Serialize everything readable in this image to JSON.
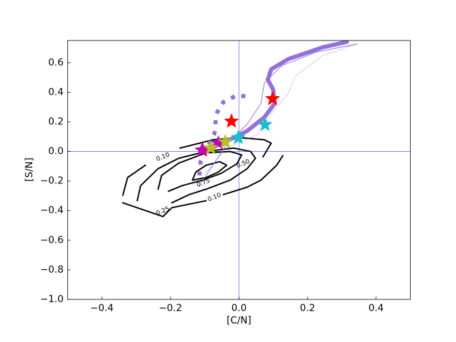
{
  "chart_data": {
    "type": "line",
    "xlabel": "[C/N]",
    "ylabel": "[S/N]",
    "xlim": [
      -0.5,
      0.5
    ],
    "ylim": [
      -1.0,
      0.75
    ],
    "xticks": [
      {
        "value": -0.4,
        "label": "−0.4"
      },
      {
        "value": -0.2,
        "label": "−0.2"
      },
      {
        "value": 0.0,
        "label": "0.0"
      },
      0.2,
      0.4
    ],
    "yticks": [
      {
        "value": -1.0,
        "label": "−1.0"
      },
      {
        "value": -0.8,
        "label": "−0.8"
      },
      {
        "value": -0.6,
        "label": "−0.6"
      },
      {
        "value": -0.4,
        "label": "−0.4"
      },
      {
        "value": -0.2,
        "label": "−0.2"
      },
      {
        "value": 0.0,
        "label": "0.0"
      },
      0.2,
      0.4,
      0.6
    ],
    "reference_lines": {
      "x": 0,
      "y": 0,
      "color": "#6b6bf0"
    },
    "series": [
      {
        "color": "#000000",
        "linestyle": "solid",
        "linewidth": 2,
        "x": [
          -0.339,
          -0.325,
          -0.273,
          null,
          -0.172,
          -0.076,
          0.004,
          0.074,
          0.094,
          0.07,
          null,
          0.128,
          0.11,
          0.064,
          0.024,
          -0.046,
          null,
          -0.096,
          -0.196,
          -0.222,
          -0.339
        ],
        "y": [
          -0.296,
          -0.176,
          -0.093,
          null,
          0.023,
          0.079,
          0.093,
          0.079,
          0.056,
          -0.037,
          null,
          -0.028,
          -0.093,
          -0.194,
          -0.241,
          -0.292,
          null,
          -0.333,
          -0.38,
          -0.44,
          -0.347
        ]
      },
      {
        "color": "#000000",
        "linestyle": "solid",
        "linewidth": 2,
        "x": [
          -0.297,
          -0.287,
          -0.236,
          -0.176,
          -0.096,
          -0.016,
          0.034,
          0.048,
          0.024,
          -0.026,
          -0.096,
          -0.146,
          -0.196
        ],
        "y": [
          -0.333,
          -0.231,
          -0.116,
          -0.046,
          0.0,
          0.023,
          0.0,
          -0.046,
          -0.116,
          -0.194,
          -0.255,
          -0.292,
          -0.347
        ]
      },
      {
        "color": "#000000",
        "linestyle": "solid",
        "linewidth": 2,
        "x": [
          -0.236,
          -0.226,
          -0.176,
          -0.096,
          -0.026,
          0.008,
          -0.006,
          -0.052,
          -0.106,
          -0.166,
          -0.206
        ],
        "y": [
          -0.255,
          -0.162,
          -0.079,
          -0.009,
          0.0,
          -0.023,
          -0.083,
          -0.148,
          -0.194,
          -0.231,
          -0.269
        ]
      },
      {
        "color": "#000000",
        "linestyle": "solid",
        "linewidth": 2,
        "x": [
          -0.136,
          -0.126,
          -0.096,
          -0.056,
          -0.036,
          -0.06,
          -0.096,
          -0.136
        ],
        "y": [
          -0.194,
          -0.139,
          -0.093,
          -0.069,
          -0.093,
          -0.139,
          -0.176,
          -0.194
        ]
      },
      {
        "color": "#9370db",
        "linestyle": "solid",
        "linewidth": 6,
        "x": [
          -0.096,
          -0.036,
          0.024,
          0.074,
          0.104,
          0.1,
          0.084,
          0.094,
          0.144,
          0.244,
          0.315
        ],
        "y": [
          0.023,
          0.069,
          0.139,
          0.231,
          0.324,
          0.417,
          0.486,
          0.556,
          0.625,
          0.704,
          0.741
        ]
      },
      {
        "color": "#9370db",
        "linestyle": "dotted",
        "linewidth": 6,
        "x": [
          -0.116,
          -0.112,
          -0.096,
          -0.072,
          -0.066,
          -0.046,
          -0.006,
          0.028
        ],
        "y": [
          -0.162,
          -0.069,
          0.009,
          0.116,
          0.255,
          0.333,
          0.38,
          0.37
        ]
      },
      {
        "color": "#9370db",
        "linestyle": "solid",
        "linewidth": 1,
        "x": [
          -0.116,
          -0.076,
          -0.036,
          0.024,
          0.064,
          0.074,
          0.124,
          0.224,
          0.345
        ],
        "y": [
          -0.231,
          -0.093,
          0.046,
          0.185,
          0.324,
          0.463,
          0.579,
          0.671,
          0.727
        ]
      },
      {
        "color": "#9370db",
        "linestyle": "dotted",
        "linewidth": 1,
        "x": [
          -0.096,
          -0.036,
          0.054,
          0.094,
          0.144,
          0.164,
          0.244,
          0.345
        ],
        "y": [
          -0.139,
          0.023,
          0.116,
          0.255,
          0.394,
          0.509,
          0.648,
          0.727
        ]
      },
      {
        "color": "#ff0000",
        "marker": "star",
        "x": [
          0.098,
          -0.022,
          -0.106
        ],
        "y": [
          0.356,
          0.204,
          0.009
        ]
      },
      {
        "color": "#17becf",
        "marker": "star",
        "x": [
          0.076,
          -0.002
        ],
        "y": [
          0.181,
          0.093
        ]
      },
      {
        "color": "#c000c0",
        "marker": "star",
        "x": [
          -0.108,
          -0.06
        ],
        "y": [
          0.009,
          0.056
        ]
      },
      {
        "color": "#bcbd22",
        "marker": "star",
        "x": [
          -0.082,
          -0.04
        ],
        "y": [
          0.023,
          0.065
        ]
      }
    ],
    "annotations": [
      {
        "text": "0.10",
        "x": -0.222,
        "y": -0.037,
        "color": "#008000"
      },
      {
        "text": "0.25",
        "x": -0.222,
        "y": -0.403,
        "color": "#008000"
      },
      {
        "text": "0.50",
        "x": 0.012,
        "y": -0.083,
        "color": "#008000"
      },
      {
        "text": "0.75",
        "x": -0.104,
        "y": -0.213,
        "color": "#008000"
      },
      {
        "text": "0.10",
        "x": -0.072,
        "y": -0.31,
        "color": "#008000"
      }
    ]
  }
}
